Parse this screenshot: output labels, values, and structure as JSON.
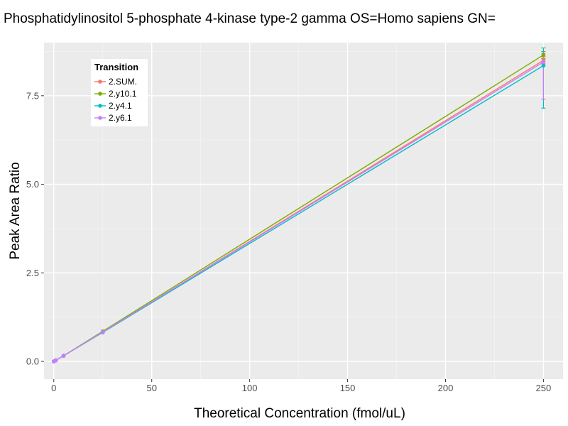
{
  "chart_data": {
    "type": "line",
    "title": "Phosphatidylinositol 5-phosphate 4-kinase type-2 gamma OS=Homo sapiens GN=",
    "xlabel": "Theoretical Concentration (fmol/uL)",
    "ylabel": "Peak Area Ratio",
    "xlim": [
      -5,
      260
    ],
    "ylim": [
      -0.5,
      9.0
    ],
    "xticks": [
      0,
      50,
      100,
      150,
      200,
      250
    ],
    "yticks": [
      0.0,
      2.5,
      5.0,
      7.5
    ],
    "xtick_labels": [
      "0",
      "50",
      "100",
      "150",
      "200",
      "250"
    ],
    "ytick_labels": [
      "0.0",
      "2.5",
      "5.0",
      "7.5"
    ],
    "grid": true,
    "legend": {
      "title": "Transition",
      "position": "top-left"
    },
    "series": [
      {
        "name": "2.SUM.",
        "color": "#F8766D",
        "points": [
          {
            "x": 0,
            "y": 0.0
          },
          {
            "x": 1,
            "y": 0.03
          },
          {
            "x": 5,
            "y": 0.16
          },
          {
            "x": 25,
            "y": 0.83
          },
          {
            "x": 250,
            "y": 8.5
          }
        ],
        "error_at_250": [
          8.4,
          8.6
        ]
      },
      {
        "name": "2.y10.1",
        "color": "#7CAE00",
        "points": [
          {
            "x": 0,
            "y": 0.0
          },
          {
            "x": 1,
            "y": 0.03
          },
          {
            "x": 5,
            "y": 0.16
          },
          {
            "x": 25,
            "y": 0.85
          },
          {
            "x": 250,
            "y": 8.65
          }
        ],
        "error_at_250": [
          8.55,
          8.75
        ]
      },
      {
        "name": "2.y4.1",
        "color": "#00BFC4",
        "points": [
          {
            "x": 0,
            "y": 0.0
          },
          {
            "x": 1,
            "y": 0.03
          },
          {
            "x": 5,
            "y": 0.16
          },
          {
            "x": 25,
            "y": 0.82
          },
          {
            "x": 250,
            "y": 8.35
          }
        ],
        "error_at_250": [
          7.15,
          8.85
        ]
      },
      {
        "name": "2.y6.1",
        "color": "#C77CFF",
        "points": [
          {
            "x": 0,
            "y": 0.0
          },
          {
            "x": 1,
            "y": 0.03
          },
          {
            "x": 5,
            "y": 0.16
          },
          {
            "x": 25,
            "y": 0.83
          },
          {
            "x": 250,
            "y": 8.45
          }
        ],
        "error_at_250": [
          7.4,
          8.7
        ]
      }
    ]
  }
}
